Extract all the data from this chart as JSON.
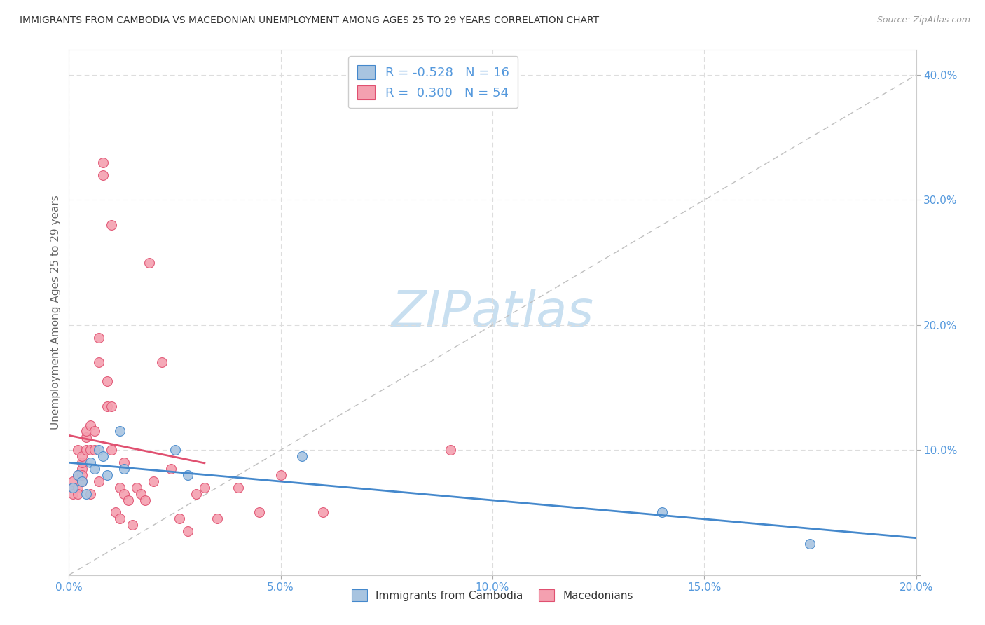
{
  "title": "IMMIGRANTS FROM CAMBODIA VS MACEDONIAN UNEMPLOYMENT AMONG AGES 25 TO 29 YEARS CORRELATION CHART",
  "source": "Source: ZipAtlas.com",
  "xlabel": "",
  "ylabel": "Unemployment Among Ages 25 to 29 years",
  "xlim": [
    0,
    0.2
  ],
  "ylim": [
    0,
    0.42
  ],
  "xticks": [
    0.0,
    0.05,
    0.1,
    0.15,
    0.2
  ],
  "yticks": [
    0.0,
    0.1,
    0.2,
    0.3,
    0.4
  ],
  "xtick_labels": [
    "0.0%",
    "5.0%",
    "10.0%",
    "15.0%",
    "20.0%"
  ],
  "ytick_labels": [
    "",
    "10.0%",
    "20.0%",
    "30.0%",
    "40.0%"
  ],
  "legend1_label": "Immigrants from Cambodia",
  "legend2_label": "Macedonians",
  "R_cambodia": -0.528,
  "N_cambodia": 16,
  "R_macedonian": 0.3,
  "N_macedonian": 54,
  "color_cambodia": "#a8c4e0",
  "color_macedonian": "#f4a0b0",
  "line_color_cambodia": "#4488cc",
  "line_color_macedonian": "#e05070",
  "watermark_color": "#c8dff0",
  "title_fontsize": 11,
  "cambodia_x": [
    0.001,
    0.002,
    0.003,
    0.004,
    0.005,
    0.006,
    0.007,
    0.008,
    0.009,
    0.012,
    0.013,
    0.025,
    0.028,
    0.055,
    0.14,
    0.175
  ],
  "cambodia_y": [
    0.07,
    0.08,
    0.075,
    0.065,
    0.09,
    0.085,
    0.1,
    0.095,
    0.08,
    0.115,
    0.085,
    0.1,
    0.08,
    0.095,
    0.05,
    0.025
  ],
  "macedonian_x": [
    0.001,
    0.001,
    0.001,
    0.002,
    0.002,
    0.002,
    0.002,
    0.003,
    0.003,
    0.003,
    0.003,
    0.003,
    0.004,
    0.004,
    0.004,
    0.005,
    0.005,
    0.005,
    0.006,
    0.006,
    0.007,
    0.007,
    0.007,
    0.008,
    0.008,
    0.009,
    0.009,
    0.01,
    0.01,
    0.01,
    0.011,
    0.012,
    0.012,
    0.013,
    0.013,
    0.014,
    0.015,
    0.016,
    0.017,
    0.018,
    0.019,
    0.02,
    0.022,
    0.024,
    0.026,
    0.028,
    0.03,
    0.032,
    0.035,
    0.04,
    0.045,
    0.05,
    0.06,
    0.09
  ],
  "macedonian_y": [
    0.07,
    0.065,
    0.075,
    0.08,
    0.07,
    0.065,
    0.1,
    0.085,
    0.075,
    0.08,
    0.09,
    0.095,
    0.11,
    0.1,
    0.115,
    0.12,
    0.1,
    0.065,
    0.115,
    0.1,
    0.19,
    0.17,
    0.075,
    0.33,
    0.32,
    0.155,
    0.135,
    0.28,
    0.135,
    0.1,
    0.05,
    0.045,
    0.07,
    0.065,
    0.09,
    0.06,
    0.04,
    0.07,
    0.065,
    0.06,
    0.25,
    0.075,
    0.17,
    0.085,
    0.045,
    0.035,
    0.065,
    0.07,
    0.045,
    0.07,
    0.05,
    0.08,
    0.05,
    0.1
  ]
}
